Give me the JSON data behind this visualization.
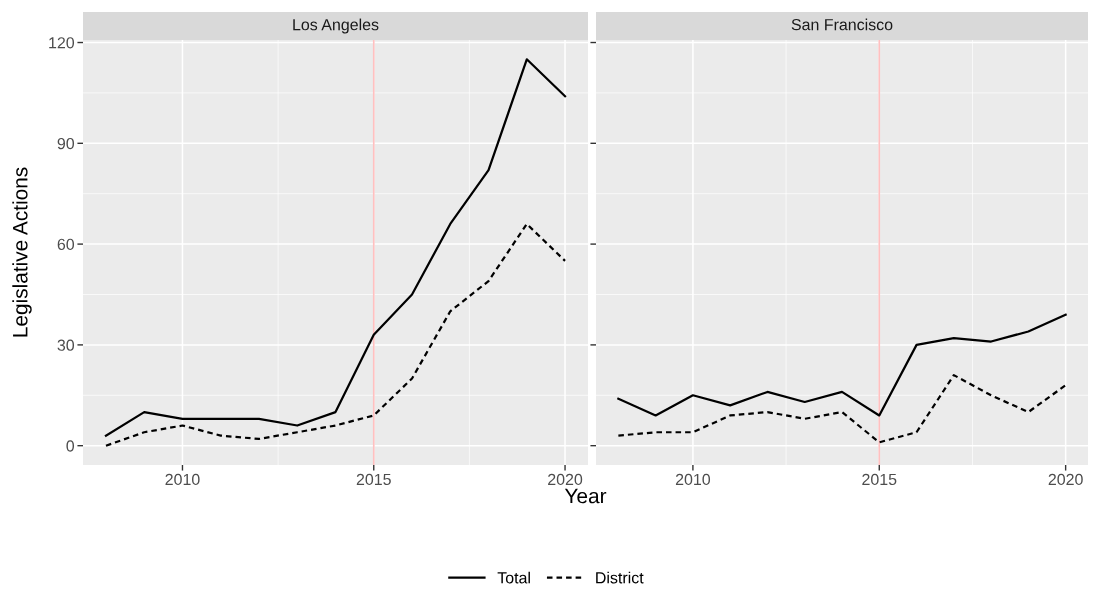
{
  "chart_data": [
    {
      "type": "line",
      "title": "Los Angeles",
      "xlabel": "Year",
      "ylabel": "Legislative Actions",
      "x": [
        2008,
        2009,
        2010,
        2011,
        2012,
        2013,
        2014,
        2015,
        2016,
        2017,
        2018,
        2019,
        2020
      ],
      "series": [
        {
          "name": "Total",
          "color": "#000000",
          "line_style": "solid",
          "values": [
            3,
            10,
            8,
            8,
            8,
            6,
            10,
            33,
            45,
            66,
            82,
            115,
            104
          ]
        },
        {
          "name": "District",
          "color": "#000000",
          "line_style": "dashed",
          "values": [
            0,
            4,
            6,
            3,
            2,
            4,
            6,
            9,
            20,
            40,
            49,
            66,
            55
          ]
        }
      ],
      "xlim": [
        2007.4,
        2020.6
      ],
      "xticks": [
        2010,
        2015,
        2020
      ],
      "ylim": [
        -5.75,
        120.75
      ],
      "yticks": [
        0,
        30,
        60,
        90,
        120
      ],
      "ref_lines": [
        {
          "axis": "x",
          "value": 2015,
          "color": "#ffc0c0"
        }
      ],
      "grid": true,
      "legend": "bottom"
    },
    {
      "type": "line",
      "title": "San Francisco",
      "x": [
        2008,
        2009,
        2010,
        2011,
        2012,
        2013,
        2014,
        2015,
        2016,
        2017,
        2018,
        2019,
        2020
      ],
      "series": [
        {
          "color": "#000000",
          "line_style": "solid",
          "values": [
            14,
            9,
            15,
            12,
            16,
            13,
            16,
            9,
            30,
            32,
            31,
            34,
            39
          ]
        },
        {
          "color": "#000000",
          "line_style": "dashed",
          "values": [
            3,
            4,
            4,
            9,
            10,
            8,
            10,
            1,
            4,
            21,
            15,
            10,
            18
          ]
        }
      ],
      "xlim": [
        2007.4,
        2020.6
      ],
      "xticks": [
        2010,
        2015,
        2020
      ],
      "ylim": [
        -5.75,
        120.75
      ],
      "yticks": [
        0,
        30,
        60,
        90,
        120
      ],
      "ref_lines": [
        {
          "axis": "x",
          "value": 2015,
          "color": "#ffc0c0"
        }
      ],
      "grid": true,
      "tick_labels": "x"
    }
  ]
}
